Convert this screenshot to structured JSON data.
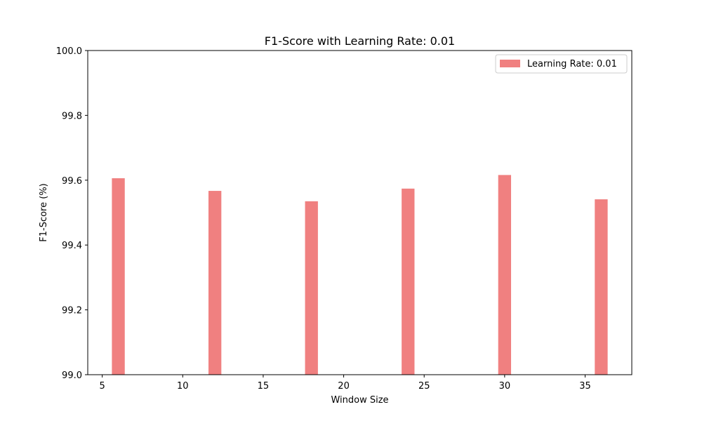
{
  "chart_data": {
    "type": "bar",
    "title": "F1-Score with Learning Rate: 0.01",
    "xlabel": "Window Size",
    "ylabel": "F1-Score (%)",
    "x": [
      6,
      12,
      18,
      24,
      30,
      36
    ],
    "series": [
      {
        "name": "Learning Rate: 0.01",
        "values": [
          99.606,
          99.567,
          99.535,
          99.574,
          99.616,
          99.541
        ],
        "color": "#f08080"
      }
    ],
    "xlim": [
      4.1,
      37.9
    ],
    "ylim": [
      99.0,
      100.0
    ],
    "xticks": [
      5,
      10,
      15,
      20,
      25,
      30,
      35
    ],
    "yticks": [
      99.0,
      99.2,
      99.4,
      99.6,
      99.8,
      100.0
    ],
    "ytick_labels": [
      "99.0",
      "99.2",
      "99.4",
      "99.6",
      "99.8",
      "100.0"
    ],
    "bar_width": 0.8,
    "grid": false,
    "legend_position": "top-right"
  }
}
